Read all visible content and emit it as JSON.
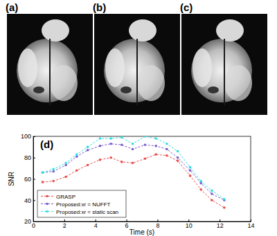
{
  "panels": {
    "labels": [
      "(a)",
      "(b)",
      "(c)"
    ]
  },
  "chart_data": {
    "type": "line",
    "annotations": [
      "(d)"
    ],
    "x_label": "Time (s)",
    "y_label": "SNR",
    "x": [
      0.6,
      1.3,
      2.1,
      2.8,
      3.5,
      4.3,
      5.0,
      5.7,
      6.4,
      7.2,
      7.9,
      8.6,
      9.3,
      10.1,
      10.8,
      11.5,
      12.3
    ],
    "series": [
      {
        "name": "GRASP",
        "color": "#e8504f",
        "values": [
          57,
          58,
          62,
          68,
          73,
          78,
          80,
          76,
          75,
          79,
          83,
          82,
          77,
          63,
          50,
          40,
          33
        ]
      },
      {
        "name": "Proposed:xr = NUFFT",
        "color": "#7a5ccc",
        "values": [
          66,
          67,
          73,
          81,
          87,
          91,
          93,
          92,
          88,
          92,
          91,
          88,
          80,
          68,
          56,
          46,
          40
        ]
      },
      {
        "name": "Proposed:xr = static scan",
        "color": "#33dede",
        "values": [
          66,
          69,
          75,
          83,
          90,
          98,
          98,
          99,
          93,
          100,
          98,
          93,
          86,
          71,
          58,
          49,
          41
        ]
      }
    ],
    "xlim": [
      0,
      14
    ],
    "xticks": [
      0,
      2,
      4,
      6,
      8,
      10,
      12,
      14
    ],
    "ylim": [
      20,
      100
    ],
    "yticks": [
      20,
      40,
      60,
      80,
      100
    ],
    "grid": false,
    "legend": "lower left",
    "marker": "circle",
    "line_style": "dashed"
  }
}
